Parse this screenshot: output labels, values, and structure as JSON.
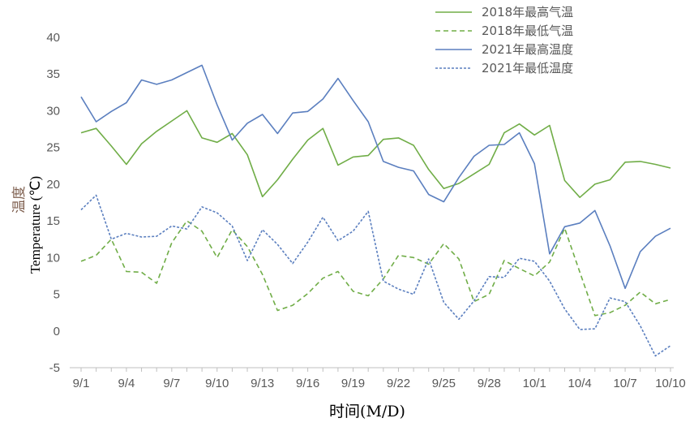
{
  "chart_data": {
    "type": "line",
    "xlabel": "时间(M/D)",
    "ylabel_cn": "温度",
    "ylabel_en": "Temperature (℃)",
    "ylim": [
      -5,
      40
    ],
    "yticks": [
      -5,
      0,
      5,
      10,
      15,
      20,
      25,
      30,
      35,
      40
    ],
    "xtick_labels": [
      "9/1",
      "9/4",
      "9/7",
      "9/10",
      "9/13",
      "9/16",
      "9/19",
      "9/22",
      "9/25",
      "9/28",
      "10/1",
      "10/4",
      "10/7",
      "10/10"
    ],
    "grid": false,
    "legend": "top-right",
    "x": [
      "9/1",
      "9/2",
      "9/3",
      "9/4",
      "9/5",
      "9/6",
      "9/7",
      "9/8",
      "9/9",
      "9/10",
      "9/11",
      "9/12",
      "9/13",
      "9/14",
      "9/15",
      "9/16",
      "9/17",
      "9/18",
      "9/19",
      "9/20",
      "9/21",
      "9/22",
      "9/23",
      "9/24",
      "9/25",
      "9/26",
      "9/27",
      "9/28",
      "9/29",
      "9/30",
      "10/1",
      "10/2",
      "10/3",
      "10/4",
      "10/5",
      "10/6",
      "10/7",
      "10/8",
      "10/9",
      "10/10"
    ],
    "series": [
      {
        "name": "2018年最高气温",
        "color": "#70ad47",
        "dash": "solid",
        "values": [
          27.0,
          27.6,
          25.2,
          22.7,
          25.5,
          27.2,
          28.6,
          30.0,
          26.3,
          25.7,
          26.9,
          24.0,
          18.3,
          20.6,
          23.4,
          26.0,
          27.6,
          22.6,
          23.7,
          23.9,
          26.1,
          26.3,
          25.3,
          22.0,
          19.4,
          20.1,
          21.4,
          22.7,
          27.0,
          28.2,
          26.7,
          28.0,
          20.5,
          18.2,
          20.0,
          20.6,
          23.0,
          23.1,
          22.7,
          22.2
        ]
      },
      {
        "name": "2018年最低气温",
        "color": "#70ad47",
        "dash": "dashed",
        "values": [
          9.5,
          10.3,
          12.5,
          8.1,
          8.0,
          6.5,
          12.0,
          15.0,
          13.6,
          10.0,
          13.8,
          11.5,
          7.7,
          2.8,
          3.5,
          5.1,
          7.2,
          8.1,
          5.4,
          4.8,
          7.1,
          10.3,
          10.0,
          9.1,
          11.9,
          9.8,
          4.0,
          5.0,
          9.6,
          8.5,
          7.5,
          9.4,
          14.0,
          8.0,
          2.1,
          2.5,
          3.5,
          5.3,
          3.7,
          4.3
        ]
      },
      {
        "name": "2021年最高温度",
        "color": "#5b7fbf",
        "dash": "solid",
        "values": [
          31.9,
          28.5,
          29.9,
          31.1,
          34.2,
          33.6,
          34.2,
          35.2,
          36.2,
          30.8,
          26.0,
          28.3,
          29.5,
          26.9,
          29.7,
          29.9,
          31.6,
          34.4,
          31.4,
          28.5,
          23.1,
          22.3,
          21.8,
          18.6,
          17.6,
          20.9,
          23.8,
          25.3,
          25.4,
          27.0,
          22.8,
          10.5,
          14.2,
          14.7,
          16.4,
          11.6,
          5.8,
          10.8,
          12.9,
          14.0
        ]
      },
      {
        "name": "2021年最低温度",
        "color": "#5b7fbf",
        "dash": "dotted",
        "values": [
          16.5,
          18.5,
          12.5,
          13.3,
          12.8,
          12.9,
          14.3,
          13.9,
          16.9,
          16.1,
          14.3,
          9.6,
          13.8,
          11.8,
          9.2,
          12.1,
          15.5,
          12.3,
          13.6,
          16.3,
          6.8,
          5.7,
          5.0,
          9.8,
          3.9,
          1.6,
          4.1,
          7.4,
          7.3,
          9.9,
          9.5,
          6.8,
          3.0,
          0.2,
          0.3,
          4.5,
          4.0,
          0.7,
          -3.4,
          -2.0
        ]
      }
    ]
  }
}
